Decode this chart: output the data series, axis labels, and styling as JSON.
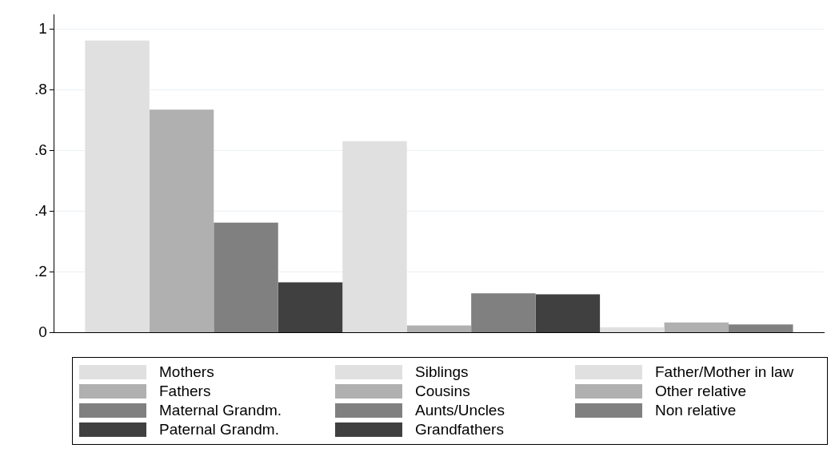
{
  "chart_data": {
    "type": "bar",
    "categories": [
      null
    ],
    "series": [
      {
        "name": "Mothers",
        "color": "#e0e0e0",
        "values": [
          0.964
        ]
      },
      {
        "name": "Fathers",
        "color": "#b0b0b0",
        "values": [
          0.736
        ]
      },
      {
        "name": "Maternal Grandm.",
        "color": "#808080",
        "values": [
          0.363
        ]
      },
      {
        "name": "Paternal Grandm.",
        "color": "#404040",
        "values": [
          0.166
        ]
      },
      {
        "name": "Siblings",
        "color": "#e0e0e0",
        "values": [
          0.632
        ]
      },
      {
        "name": "Cousins",
        "color": "#b0b0b0",
        "values": [
          0.024
        ]
      },
      {
        "name": "Aunts/Uncles",
        "color": "#808080",
        "values": [
          0.13
        ]
      },
      {
        "name": "Grandfathers",
        "color": "#404040",
        "values": [
          0.127
        ]
      },
      {
        "name": "Father/Mother in law",
        "color": "#e0e0e0",
        "values": [
          0.018
        ]
      },
      {
        "name": "Other relative",
        "color": "#b0b0b0",
        "values": [
          0.034
        ]
      },
      {
        "name": "Non relative",
        "color": "#808080",
        "values": [
          0.027
        ]
      }
    ],
    "ylim": [
      0,
      1.05
    ],
    "yticks": [
      0,
      {
        "value": 0.2,
        "label": ".2"
      },
      {
        "value": 0.4,
        "label": ".4"
      },
      {
        "value": 0.6,
        "label": ".6"
      },
      {
        "value": 0.8,
        "label": ".8"
      },
      1
    ],
    "grid": "y",
    "legend": "bottom"
  }
}
